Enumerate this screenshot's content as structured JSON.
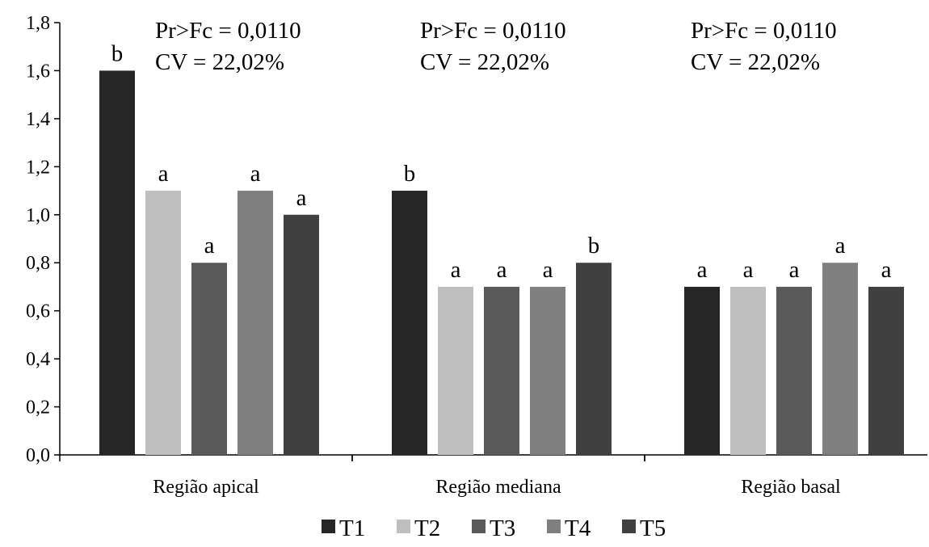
{
  "chart_data": {
    "type": "bar",
    "categories": [
      "Região apical",
      "Região mediana",
      "Região basal"
    ],
    "series": [
      {
        "name": "T1",
        "color": "#262626",
        "values": [
          1.6,
          1.1,
          0.7
        ],
        "letters": [
          "b",
          "b",
          "a"
        ]
      },
      {
        "name": "T2",
        "color": "#bfbfbf",
        "values": [
          1.1,
          0.7,
          0.7
        ],
        "letters": [
          "a",
          "a",
          "a"
        ]
      },
      {
        "name": "T3",
        "color": "#595959",
        "values": [
          0.8,
          0.7,
          0.7
        ],
        "letters": [
          "a",
          "a",
          "a"
        ]
      },
      {
        "name": "T4",
        "color": "#7f7f7f",
        "values": [
          1.1,
          0.7,
          0.8
        ],
        "letters": [
          "a",
          "a",
          "a"
        ]
      },
      {
        "name": "T5",
        "color": "#404040",
        "values": [
          1.0,
          0.8,
          0.7
        ],
        "letters": [
          "a",
          "b",
          "a"
        ]
      }
    ],
    "ylim": [
      0,
      1.8
    ],
    "yticks": [
      "0,0",
      "0,2",
      "0,4",
      "0,6",
      "0,8",
      "1,0",
      "1,2",
      "1,4",
      "1,6",
      "1,8"
    ],
    "annotations": [
      {
        "pr": "Pr>Fc = 0,0110",
        "cv": "CV = 22,02%"
      },
      {
        "pr": "Pr>Fc = 0,0110",
        "cv": "CV = 22,02%"
      },
      {
        "pr": "Pr>Fc = 0,0110",
        "cv": "CV = 22,02%"
      }
    ],
    "legend": "bottom",
    "grid": false,
    "title": "",
    "xlabel": "",
    "ylabel": ""
  }
}
